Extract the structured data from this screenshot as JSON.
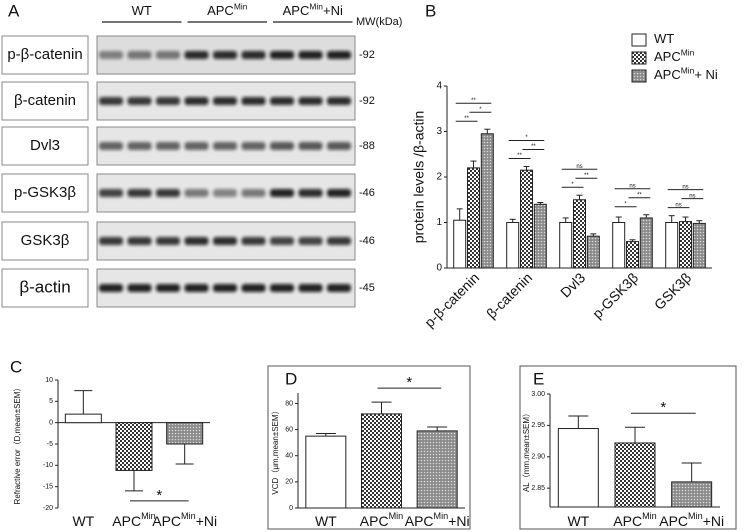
{
  "blot": {
    "panel": "A",
    "mw_header": "MW(kDa)",
    "groups": [
      {
        "text": "WT"
      },
      {
        "text": "APC",
        "sup": "Min"
      },
      {
        "text": "APC",
        "sup": "Min",
        "suffix": "+Ni"
      }
    ],
    "rows": [
      {
        "protein": "p-β-catenin",
        "mw": "-92"
      },
      {
        "protein": "β-catenin",
        "mw": "-92"
      },
      {
        "protein": "Dvl3",
        "mw": "-88"
      },
      {
        "protein": "p-GSK3β",
        "mw": "-46"
      },
      {
        "protein": "GSK3β",
        "mw": "-46"
      },
      {
        "protein": "β-actin",
        "mw": "-45"
      }
    ]
  },
  "chart_data": [
    {
      "type": "bar",
      "panel": "B",
      "ylabel": "protein levels /β-actin",
      "categories": [
        "p-β-catenin",
        "β-catenin",
        "Dvl3",
        "p-GSK3β",
        "GSK3β"
      ],
      "series": [
        {
          "name": {
            "text": "WT"
          },
          "pattern": "none",
          "color": "#ffffff",
          "values": [
            1.05,
            1.0,
            1.0,
            1.0,
            1.0
          ],
          "errors": [
            0.25,
            0.07,
            0.1,
            0.12,
            0.15
          ]
        },
        {
          "name": {
            "text": "APC",
            "sup": "Min"
          },
          "pattern": "checker",
          "color": "#333333",
          "values": [
            2.2,
            2.15,
            1.5,
            0.58,
            1.02
          ],
          "errors": [
            0.15,
            0.08,
            0.1,
            0.04,
            0.1
          ]
        },
        {
          "name": {
            "text": "APC",
            "sup": "Min",
            "suffix": "+ Ni"
          },
          "pattern": "dots",
          "color": "#777777",
          "values": [
            2.95,
            1.4,
            0.7,
            1.1,
            0.98
          ],
          "errors": [
            0.1,
            0.04,
            0.05,
            0.07,
            0.06
          ]
        }
      ],
      "ylim": [
        0,
        4
      ],
      "yticks": [
        0,
        1,
        2,
        3,
        4
      ],
      "brackets": [
        {
          "category": 0,
          "from": 0,
          "to": 1,
          "label": "**"
        },
        {
          "category": 0,
          "from": 1,
          "to": 2,
          "label": "*"
        },
        {
          "category": 0,
          "from": 0,
          "to": 2,
          "label": "**"
        },
        {
          "category": 1,
          "from": 0,
          "to": 1,
          "label": "**"
        },
        {
          "category": 1,
          "from": 1,
          "to": 2,
          "label": "**"
        },
        {
          "category": 1,
          "from": 0,
          "to": 2,
          "label": "*"
        },
        {
          "category": 2,
          "from": 0,
          "to": 1,
          "label": "*"
        },
        {
          "category": 2,
          "from": 1,
          "to": 2,
          "label": "**"
        },
        {
          "category": 2,
          "from": 0,
          "to": 2,
          "label": "ns"
        },
        {
          "category": 3,
          "from": 0,
          "to": 1,
          "label": "*"
        },
        {
          "category": 3,
          "from": 1,
          "to": 2,
          "label": "**"
        },
        {
          "category": 3,
          "from": 0,
          "to": 2,
          "label": "ns"
        },
        {
          "category": 4,
          "from": 0,
          "to": 1,
          "label": "ns"
        },
        {
          "category": 4,
          "from": 1,
          "to": 2,
          "label": "ns"
        },
        {
          "category": 4,
          "from": 0,
          "to": 2,
          "label": "ns"
        }
      ]
    },
    {
      "type": "bar",
      "panel": "C",
      "ylabel": "Refractive error（D,mean±SEM）",
      "categories": [
        {
          "text": "WT"
        },
        {
          "text": "APC",
          "sup": "Min"
        },
        {
          "text": "APC",
          "sup": "Min",
          "suffix": "+Ni"
        }
      ],
      "values": [
        2,
        -11.2,
        -5
      ],
      "errors": [
        5.5,
        4.8,
        4.7
      ],
      "patterns": [
        "none",
        "checker",
        "dots"
      ],
      "ylim": [
        -20,
        10
      ],
      "yticks": [
        -20,
        -15,
        -10,
        -5,
        0,
        5,
        10
      ],
      "brackets": [
        {
          "from": 1,
          "to": 2,
          "label": "*"
        }
      ]
    },
    {
      "type": "bar",
      "panel": "D",
      "ylabel": "VCD（μm,mean±SEM）",
      "categories": [
        {
          "text": "WT"
        },
        {
          "text": "APC",
          "sup": "Min"
        },
        {
          "text": "APC",
          "sup": "Min",
          "suffix": "+Ni"
        }
      ],
      "values": [
        55,
        72,
        59
      ],
      "errors": [
        2,
        9,
        3
      ],
      "patterns": [
        "none",
        "checker",
        "dots"
      ],
      "ylim": [
        0,
        88
      ],
      "yticks": [
        0,
        20,
        40,
        60,
        80
      ],
      "brackets": [
        {
          "from": 1,
          "to": 2,
          "label": "*"
        }
      ]
    },
    {
      "type": "bar",
      "panel": "E",
      "ylabel": "AL（mm,mean±SEM）",
      "categories": [
        {
          "text": "WT"
        },
        {
          "text": "APC",
          "sup": "Min"
        },
        {
          "text": "APC",
          "sup": "Min",
          "suffix": "+Ni"
        }
      ],
      "values": [
        2.945,
        2.922,
        2.86
      ],
      "errors": [
        0.02,
        0.025,
        0.03
      ],
      "patterns": [
        "none",
        "checker",
        "dots"
      ],
      "ylim": [
        2.82,
        3.0
      ],
      "yticks": [
        2.85,
        {
          "value": 2.9,
          "label": "2.90"
        },
        2.95,
        {
          "value": 3.0,
          "label": "3.00"
        }
      ],
      "brackets": [
        {
          "from": 1,
          "to": 2,
          "label": "*"
        }
      ]
    }
  ]
}
